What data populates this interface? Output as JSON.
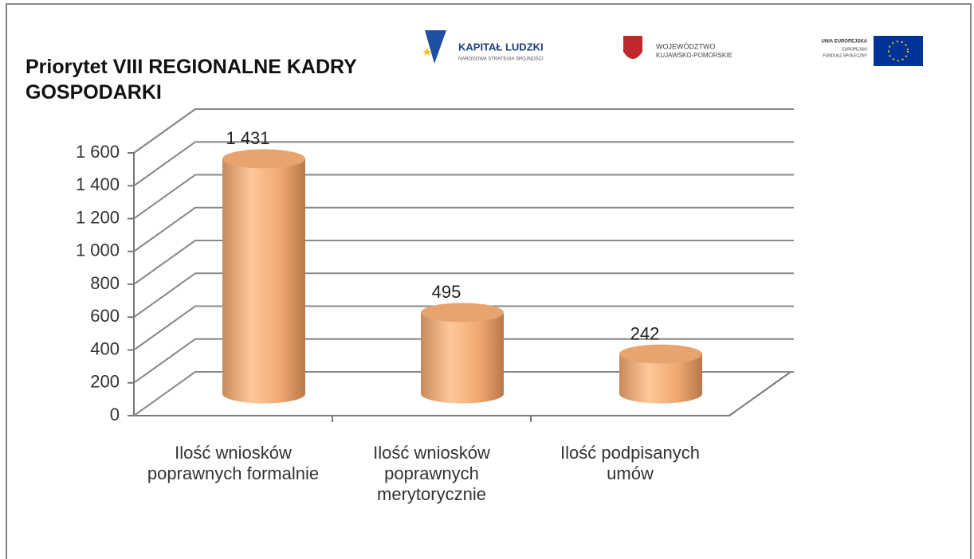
{
  "chart_data": {
    "type": "bar3d",
    "title": "Priorytet VIII REGIONALNE KADRY GOSPODARKI",
    "categories": [
      "Ilość wniosków poprawnych formalnie",
      "Ilość wniosków poprawnych merytorycznie",
      "Ilość podpisanych umów"
    ],
    "values": [
      1431,
      495,
      242
    ],
    "value_labels": [
      "1 431",
      "495",
      "242"
    ],
    "color": "#f2b27e",
    "ylim": [
      0,
      1600
    ],
    "yticks": [
      0,
      200,
      400,
      600,
      800,
      {
        "value": 1000,
        "label": "1 000"
      },
      {
        "value": 1200,
        "label": "1 200"
      },
      {
        "value": 1400,
        "label": "1 400"
      },
      {
        "value": 1600,
        "label": "1 600"
      }
    ],
    "grid": true
  },
  "logos": {
    "kapital": "KAPITAŁ LUDZKI",
    "kapital_sub": "NARODOWA STRATEGIA SPÓJNOŚCI",
    "woj": "WOJEWÓDZTWO",
    "woj_sub": "KUJAWSKO-POMORSKIE",
    "ue": "UNIA EUROPEJSKA",
    "ue_sub1": "EUROPEJSKI",
    "ue_sub2": "FUNDUSZ SPOŁECZNY"
  }
}
